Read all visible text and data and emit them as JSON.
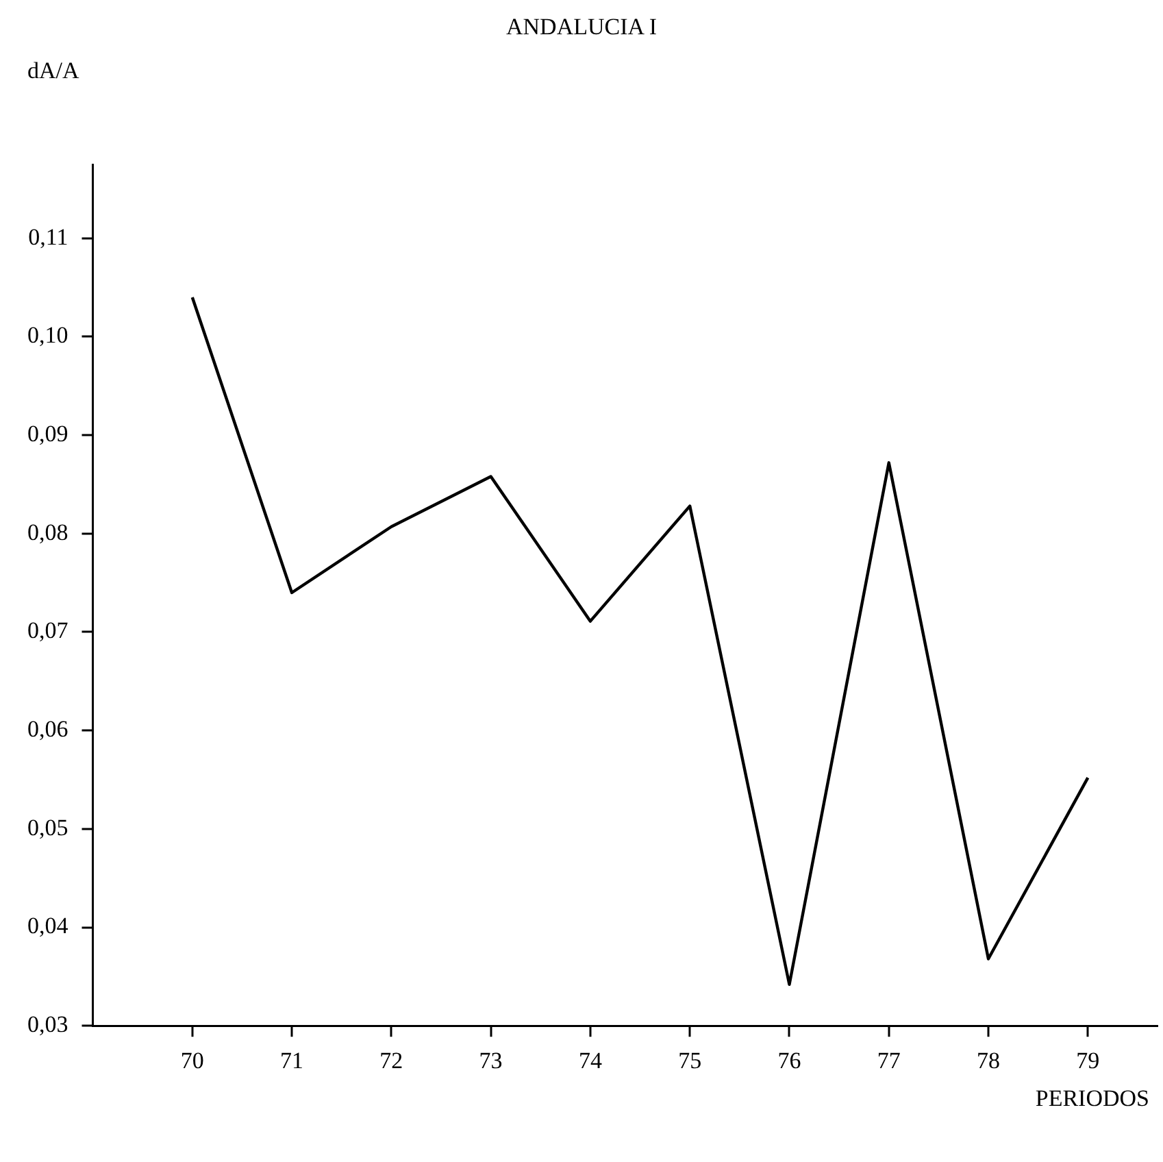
{
  "chart_data": {
    "type": "line",
    "title": "ANDALUCIA I",
    "xlabel": "PERIODOS",
    "ylabel": "dA/A",
    "x": [
      70,
      71,
      72,
      73,
      74,
      75,
      76,
      77,
      78,
      79
    ],
    "series": [
      {
        "color": "#000000",
        "values": [
          0.104,
          0.074,
          0.0807,
          0.0858,
          0.0711,
          0.0828,
          0.0342,
          0.0872,
          0.0368,
          0.0552
        ]
      }
    ],
    "xlim": [
      69,
      79.7
    ],
    "xticks": [
      70,
      71,
      72,
      73,
      74,
      75,
      76,
      77,
      78,
      79
    ],
    "ylim": [
      0.03,
      0.1175
    ],
    "yticks": [
      {
        "value": 0.03,
        "label": "0,03"
      },
      {
        "value": 0.04,
        "label": "0,04"
      },
      {
        "value": 0.05,
        "label": "0,05"
      },
      {
        "value": 0.06,
        "label": "0,06"
      },
      {
        "value": 0.07,
        "label": "0,07"
      },
      {
        "value": 0.08,
        "label": "0,08"
      },
      {
        "value": 0.09,
        "label": "0,09"
      },
      {
        "value": 0.1,
        "label": "0,10"
      },
      {
        "value": 0.11,
        "label": "0,11"
      }
    ],
    "grid": false,
    "legend": false,
    "marker": "none",
    "line_style": "solid"
  }
}
